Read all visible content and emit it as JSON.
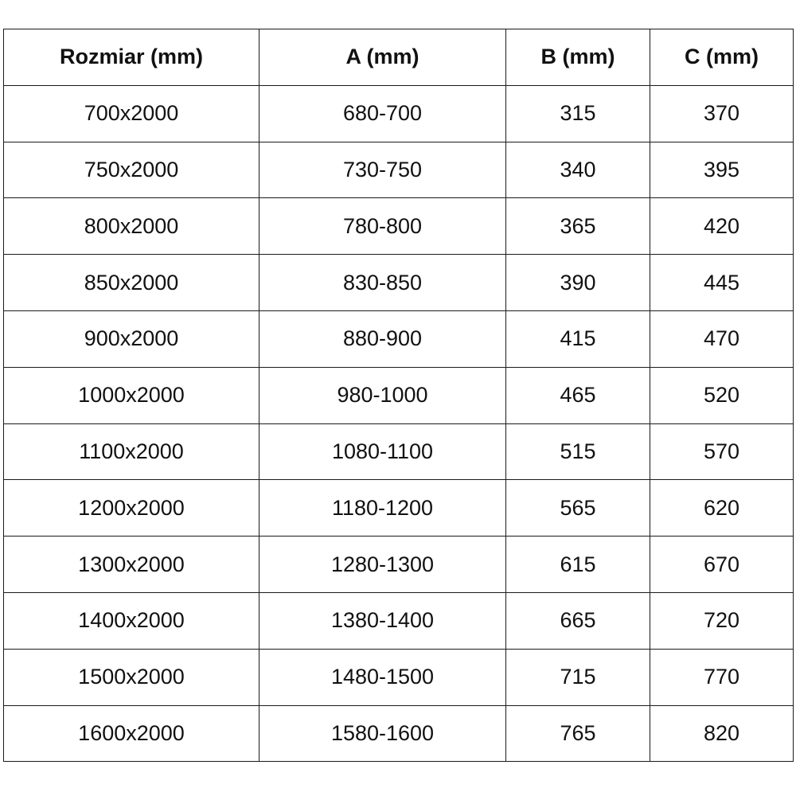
{
  "table": {
    "headers": [
      "Rozmiar (mm)",
      "A (mm)",
      "B (mm)",
      "C (mm)"
    ],
    "rows": [
      [
        "700x2000",
        "680-700",
        "315",
        "370"
      ],
      [
        "750x2000",
        "730-750",
        "340",
        "395"
      ],
      [
        "800x2000",
        "780-800",
        "365",
        "420"
      ],
      [
        "850x2000",
        "830-850",
        "390",
        "445"
      ],
      [
        "900x2000",
        "880-900",
        "415",
        "470"
      ],
      [
        "1000x2000",
        "980-1000",
        "465",
        "520"
      ],
      [
        "1100x2000",
        "1080-1100",
        "515",
        "570"
      ],
      [
        "1200x2000",
        "1180-1200",
        "565",
        "620"
      ],
      [
        "1300x2000",
        "1280-1300",
        "615",
        "670"
      ],
      [
        "1400x2000",
        "1380-1400",
        "665",
        "720"
      ],
      [
        "1500x2000",
        "1480-1500",
        "715",
        "770"
      ],
      [
        "1600x2000",
        "1580-1600",
        "765",
        "820"
      ]
    ]
  }
}
